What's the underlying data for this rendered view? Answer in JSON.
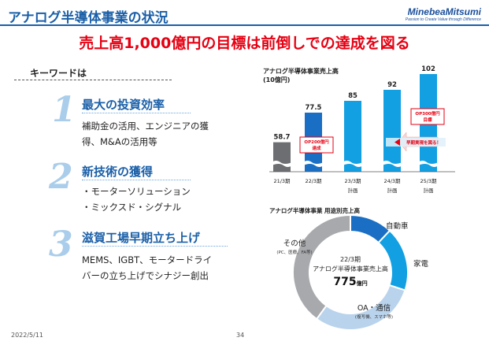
{
  "header": {
    "title": "アナログ半導体事業の状況",
    "logo_name": "MinebeaMitsumi",
    "logo_tagline": "Passion to Create Value through Difference"
  },
  "headline": "売上高1,000億円の目標は前倒しでの達成を図る",
  "keywords": {
    "label": "キーワードは",
    "items": [
      {
        "number": "1",
        "title": "最大の投資効率",
        "lines": [
          "補助金の活用、エンジニアの獲",
          "得、M&Aの活用等"
        ]
      },
      {
        "number": "2",
        "title": "新技術の獲得",
        "lines": [
          "・モーターソリューション",
          "・ミックスド・シグナル"
        ]
      },
      {
        "number": "3",
        "title": "滋賀工場早期立ち上げ",
        "lines": [
          "MEMS、IGBT、モータードライ",
          "バーの立ち上げでシナジー創出"
        ]
      }
    ]
  },
  "chart_data": [
    {
      "type": "bar",
      "title": "アナログ半導体事業売上高",
      "subtitle": "(10億円)",
      "categories": [
        {
          "line1": "21/3期",
          "line2": ""
        },
        {
          "line1": "22/3期",
          "line2": ""
        },
        {
          "line1": "23/3期",
          "line2": "計画"
        },
        {
          "line1": "24/3期",
          "line2": "計画"
        },
        {
          "line1": "25/3期",
          "line2": "計画"
        }
      ],
      "values": [
        58.7,
        77.5,
        85,
        92,
        102
      ],
      "value_labels": [
        "58.7",
        "77.5",
        "85",
        "92",
        "102"
      ],
      "ylim": [
        0,
        102
      ],
      "axis_break": true,
      "grid": false,
      "colors": [
        "#6d6e71",
        "#1a6fc4",
        "#12a0e3",
        "#12a0e3",
        "#12a0e3"
      ],
      "callouts": [
        {
          "lines": [
            "OP200億円",
            "達成"
          ],
          "at": "22/3期",
          "color": "#e60012"
        },
        {
          "lines": [
            "OP300億円",
            "目標"
          ],
          "at": "25/3期",
          "color": "#e60012"
        }
      ],
      "arrow_label": "早期実現を図る！"
    },
    {
      "type": "pie",
      "title": "アナログ半導体事業 用途別売上高",
      "center_lines": [
        "22/3期",
        "アナログ半導体事業売上高"
      ],
      "center_value": "775",
      "center_unit": "億円",
      "slices": [
        {
          "label": "自動車",
          "sub": "",
          "value": 12,
          "color": "#1a6fc4"
        },
        {
          "label": "家電",
          "sub": "",
          "value": 18,
          "color": "#12a0e3"
        },
        {
          "label": "OA・通信",
          "sub": "(複写機、スマホ等)",
          "value": 30,
          "color": "#b9d3ec"
        },
        {
          "label": "その他",
          "sub": "(PC、医療、FA等)",
          "value": 40,
          "color": "#a7a9ac"
        }
      ]
    }
  ],
  "footer": {
    "date": "2022/5/11",
    "page": "34"
  }
}
